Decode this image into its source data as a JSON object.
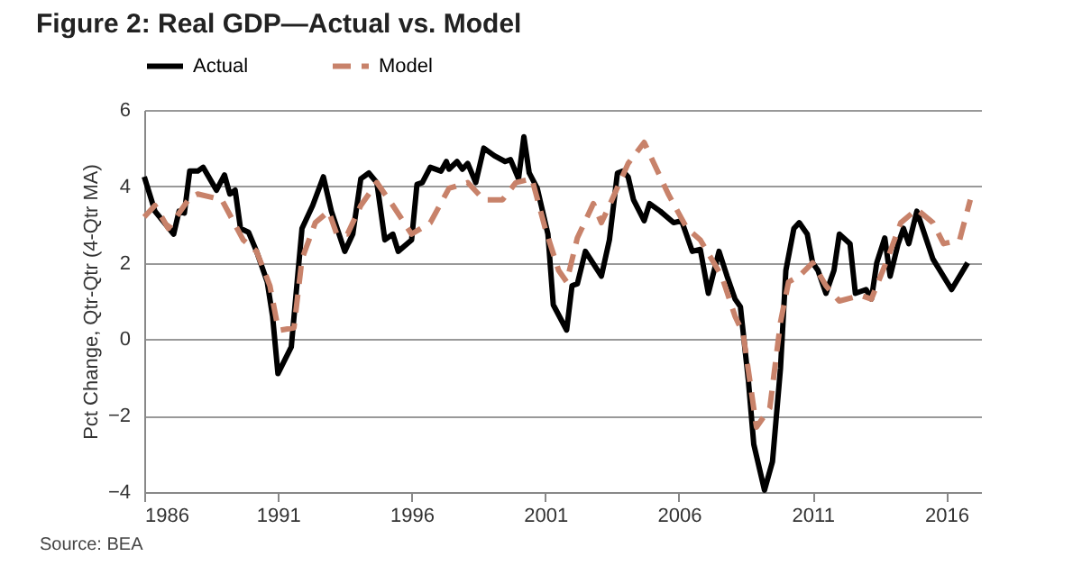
{
  "chart_data": {
    "type": "line",
    "title": "Figure 2: Real GDP—Actual vs. Model",
    "ylabel": "Pct Change, Qtr-Qtr (4-Qtr MA)",
    "annotations": [
      "Source: BEA"
    ],
    "xlim": [
      1986,
      2017.3
    ],
    "xticks": [
      1986,
      1991,
      1996,
      2001,
      2006,
      2011,
      2016
    ],
    "ylim": [
      -4,
      6
    ],
    "yticks": [
      -4,
      -2,
      0,
      2,
      4,
      6
    ],
    "grid": "y",
    "legend": "top",
    "series": [
      {
        "name": "Actual",
        "color": "#000000",
        "line_style": "solid",
        "x": [
          1986.0,
          1986.4,
          1987.1,
          1987.3,
          1987.5,
          1987.7,
          1988.0,
          1988.2,
          1988.7,
          1989.0,
          1989.2,
          1989.4,
          1989.6,
          1989.9,
          1990.2,
          1990.6,
          1990.8,
          1991.0,
          1991.5,
          1991.9,
          1992.3,
          1992.7,
          1993.0,
          1993.5,
          1993.8,
          1994.1,
          1994.4,
          1994.7,
          1995.0,
          1995.3,
          1995.5,
          1996.0,
          1996.2,
          1996.4,
          1996.7,
          1997.1,
          1997.3,
          1997.4,
          1997.7,
          1997.9,
          1998.1,
          1998.4,
          1998.7,
          1999.1,
          1999.5,
          1999.7,
          2000.0,
          2000.2,
          2000.4,
          2000.7,
          2001.1,
          2001.3,
          2001.8,
          2002.0,
          2002.2,
          2002.5,
          2003.1,
          2003.4,
          2003.7,
          2003.9,
          2004.1,
          2004.3,
          2004.7,
          2004.9,
          2005.3,
          2005.8,
          2006.1,
          2006.5,
          2006.8,
          2007.1,
          2007.5,
          2007.8,
          2008.1,
          2008.3,
          2008.6,
          2008.8,
          2009.2,
          2009.5,
          2009.8,
          2010.0,
          2010.3,
          2010.5,
          2010.8,
          2011.0,
          2011.2,
          2011.5,
          2011.8,
          2012.0,
          2012.4,
          2012.6,
          2013.0,
          2013.2,
          2013.4,
          2013.7,
          2013.9,
          2014.2,
          2014.4,
          2014.6,
          2014.9,
          2015.5,
          2016.2,
          2016.8
        ],
        "values": [
          4.25,
          3.35,
          2.75,
          3.35,
          3.3,
          4.4,
          4.4,
          4.5,
          3.9,
          4.3,
          3.8,
          3.9,
          2.9,
          2.8,
          2.3,
          1.5,
          0.6,
          -0.9,
          -0.2,
          2.9,
          3.5,
          4.25,
          3.35,
          2.3,
          2.75,
          4.2,
          4.35,
          4.1,
          2.6,
          2.75,
          2.3,
          2.6,
          4.05,
          4.1,
          4.5,
          4.4,
          4.65,
          4.45,
          4.65,
          4.45,
          4.6,
          4.1,
          5.0,
          4.8,
          4.65,
          4.7,
          4.2,
          5.3,
          4.35,
          3.95,
          2.75,
          0.9,
          0.24,
          1.4,
          1.45,
          2.3,
          1.65,
          2.6,
          4.35,
          4.4,
          4.25,
          3.65,
          3.1,
          3.55,
          3.35,
          3.05,
          3.1,
          2.3,
          2.35,
          1.2,
          2.3,
          1.65,
          1.05,
          0.85,
          -1.1,
          -2.75,
          -3.95,
          -3.2,
          -0.75,
          1.8,
          2.9,
          3.05,
          2.75,
          2.0,
          1.8,
          1.2,
          1.8,
          2.75,
          2.5,
          1.2,
          1.3,
          1.05,
          2.0,
          2.65,
          1.65,
          2.5,
          2.9,
          2.5,
          3.35,
          2.1,
          1.3,
          2.0
        ]
      },
      {
        "name": "Model",
        "color": "#c8826a",
        "line_style": "dashed",
        "x": [
          1986.0,
          1986.4,
          1986.9,
          1987.7,
          1988.0,
          1988.9,
          1989.7,
          1990.2,
          1990.7,
          1991.0,
          1991.1,
          1991.6,
          1991.9,
          1992.4,
          1992.9,
          1993.2,
          1993.6,
          1994.1,
          1994.7,
          1995.3,
          1996.0,
          1996.7,
          1997.4,
          1998.1,
          1998.7,
          1999.4,
          1999.9,
          2000.5,
          2001.0,
          2001.5,
          2001.8,
          2002.2,
          2002.8,
          2003.1,
          2003.4,
          2004.1,
          2004.7,
          2005.1,
          2005.6,
          2006.3,
          2006.8,
          2007.6,
          2008.1,
          2008.4,
          2008.9,
          2009.4,
          2009.8,
          2010.1,
          2010.5,
          2011.0,
          2011.5,
          2012.0,
          2012.8,
          2013.2,
          2013.8,
          2014.3,
          2014.9,
          2015.5,
          2015.9,
          2016.5,
          2016.9
        ],
        "values": [
          3.2,
          3.5,
          2.9,
          3.7,
          3.8,
          3.65,
          2.6,
          2.3,
          1.4,
          0.3,
          0.24,
          0.3,
          2.1,
          3.05,
          3.35,
          2.75,
          2.75,
          3.5,
          4.1,
          3.5,
          2.75,
          3.05,
          3.95,
          4.1,
          3.65,
          3.65,
          4.1,
          4.2,
          2.9,
          1.8,
          1.5,
          2.65,
          3.55,
          3.05,
          3.5,
          4.6,
          5.15,
          4.55,
          3.8,
          2.9,
          2.6,
          1.65,
          0.6,
          0.15,
          -2.3,
          -1.8,
          0.45,
          1.5,
          1.65,
          2.0,
          1.4,
          1.0,
          1.15,
          1.05,
          2.1,
          3.05,
          3.4,
          3.05,
          2.5,
          2.6,
          3.65
        ]
      }
    ]
  }
}
